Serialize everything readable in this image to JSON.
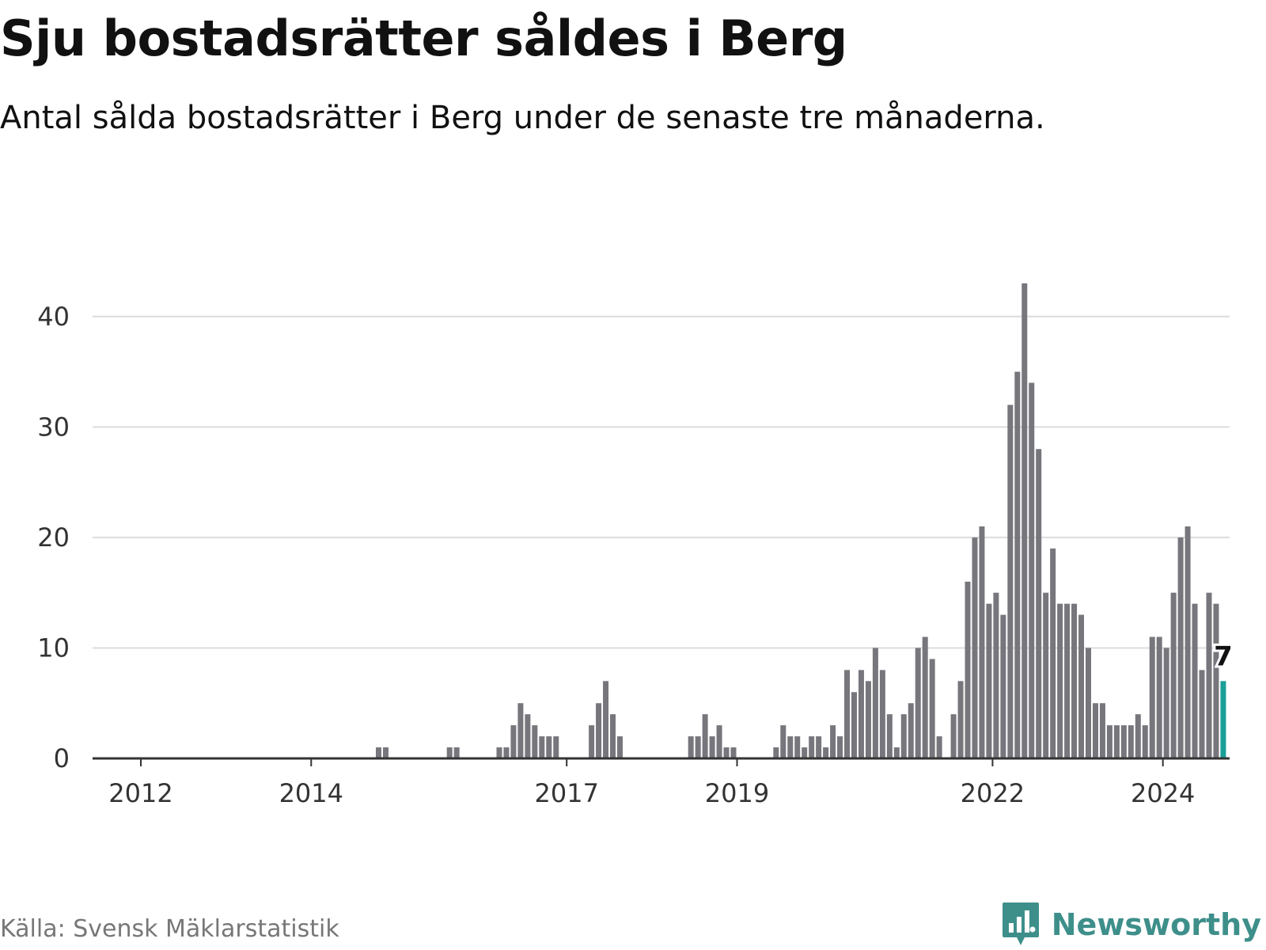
{
  "header": {
    "title": "Sju bostadsrätter såldes i Berg",
    "subtitle": "Antal sålda bostadsrätter i Berg under de senaste tre månaderna."
  },
  "footer": {
    "source": "Källa: Svensk Mäklarstatistik",
    "brand": "Newsworthy",
    "brand_icon": "bar-chart-logo-icon"
  },
  "colors": {
    "bar": "#77767d",
    "highlight": "#1a9f97",
    "brand": "#3e8f8a"
  },
  "chart_data": {
    "type": "bar",
    "title": "Sju bostadsrätter såldes i Berg",
    "xlabel": "",
    "ylabel": "",
    "ylim": [
      0,
      45
    ],
    "yticks": [
      0,
      10,
      20,
      30,
      40
    ],
    "x_ticks": [
      "2012",
      "2014",
      "2017",
      "2019",
      "2022",
      "2024"
    ],
    "grid": true,
    "start": "2011-04",
    "end": "2024-02",
    "highlight_label": "7",
    "values": [
      0,
      0,
      0,
      0,
      0,
      0,
      0,
      0,
      0,
      0,
      0,
      0,
      0,
      0,
      0,
      0,
      0,
      0,
      0,
      0,
      0,
      0,
      0,
      0,
      0,
      0,
      0,
      0,
      0,
      0,
      0,
      0,
      0,
      0,
      0,
      0,
      0,
      0,
      0,
      0,
      0,
      0,
      1,
      1,
      0,
      0,
      0,
      0,
      0,
      0,
      0,
      0,
      1,
      1,
      0,
      0,
      0,
      0,
      0,
      1,
      1,
      3,
      5,
      4,
      3,
      2,
      2,
      2,
      0,
      0,
      0,
      0,
      3,
      5,
      7,
      4,
      2,
      0,
      0,
      0,
      0,
      0,
      0,
      0,
      0,
      0,
      2,
      2,
      4,
      2,
      3,
      1,
      1,
      0,
      0,
      0,
      0,
      0,
      1,
      3,
      2,
      2,
      1,
      2,
      2,
      1,
      3,
      2,
      8,
      6,
      8,
      7,
      10,
      8,
      4,
      1,
      4,
      5,
      10,
      11,
      9,
      2,
      0,
      4,
      7,
      16,
      20,
      21,
      14,
      15,
      13,
      32,
      35,
      43,
      34,
      28,
      15,
      19,
      14,
      14,
      14,
      13,
      10,
      5,
      5,
      3,
      3,
      3,
      3,
      4,
      3,
      11,
      11,
      10,
      15,
      20,
      21,
      14,
      8,
      15,
      14,
      7
    ]
  }
}
